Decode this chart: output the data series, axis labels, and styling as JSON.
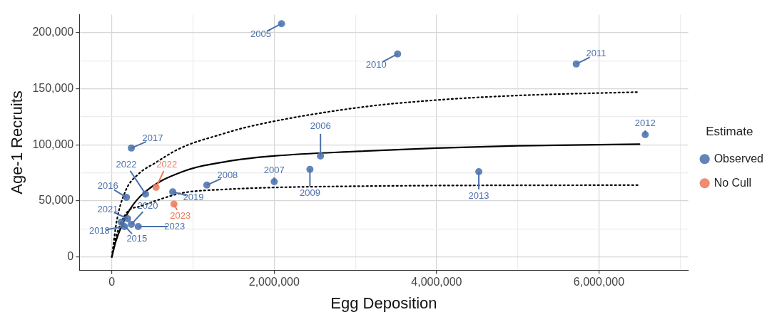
{
  "chart_data": {
    "type": "scatter",
    "xlabel": "Egg Deposition",
    "ylabel": "Age-1 Recruits",
    "legend_title": "Estimate",
    "legend": "right",
    "grid": true,
    "xlim": [
      -400000,
      7100000
    ],
    "ylim": [
      -12000,
      216000
    ],
    "xticks": [
      0,
      {
        "value": 1000000,
        "label": null
      },
      {
        "value": 2000000,
        "label": "2,000,000"
      },
      {
        "value": 3000000,
        "label": null
      },
      {
        "value": 4000000,
        "label": "4,000,000"
      },
      {
        "value": 5000000,
        "label": null
      },
      {
        "value": 6000000,
        "label": "6,000,000"
      },
      {
        "value": 7000000,
        "label": null
      }
    ],
    "yticks": [
      0,
      {
        "value": 25000,
        "label": null
      },
      {
        "value": 50000,
        "label": "50,000"
      },
      {
        "value": 75000,
        "label": null
      },
      {
        "value": 100000,
        "label": "100,000"
      },
      {
        "value": 125000,
        "label": null
      },
      {
        "value": 150000,
        "label": "150,000"
      },
      {
        "value": 175000,
        "label": null
      },
      {
        "value": 200000,
        "label": "200,000"
      }
    ],
    "series": [
      {
        "name": "Observed",
        "color": "#4a71ad",
        "marker": "circle",
        "x": [
          2090000,
          2570000,
          2000000,
          1170000,
          2440000,
          3520000,
          5720000,
          6570000,
          4520000,
          115000,
          180000,
          240000,
          155000,
          750000,
          240000,
          195000,
          415000,
          325000
        ],
        "values": [
          208000,
          90000,
          67000,
          64000,
          78000,
          181000,
          172000,
          109000,
          76000,
          31000,
          53000,
          97000,
          27000,
          58000,
          29000,
          34000,
          56000,
          27000
        ]
      },
      {
        "name": "No Cull",
        "color": "#ee7a5a",
        "marker": "circle",
        "x": [
          545000,
          765000
        ],
        "values": [
          62000,
          47000
        ]
      },
      {
        "type": "line",
        "color": "#000000",
        "marker": "none",
        "line_style": "solid",
        "x": [
          0,
          50000,
          100000,
          220000,
          410000,
          870000,
          1500000,
          2000000,
          3000000,
          4000000,
          5000000,
          6500000
        ],
        "values": [
          0,
          14000,
          24000,
          42000,
          58000,
          76000,
          86000,
          90000,
          94000,
          97000,
          99000,
          100500
        ]
      },
      {
        "type": "line",
        "color": "#000000",
        "marker": "none",
        "line_style": "dotted",
        "x": [
          0,
          60000,
          170000,
          330000,
          540000,
          790000,
          980000,
          1290000,
          1680000,
          3020000,
          4030000,
          5040000,
          6500000
        ],
        "values": [
          0,
          32000,
          59000,
          74000,
          84000,
          95000,
          101000,
          108000,
          116000,
          133000,
          140000,
          144000,
          147000
        ]
      },
      {
        "type": "line",
        "color": "#000000",
        "marker": "none",
        "line_style": "dotted",
        "x": [
          0,
          30000,
          190000,
          350000,
          540000,
          870000,
          1350000,
          3020000,
          6500000
        ],
        "values": [
          0,
          12000,
          40000,
          45000,
          50000,
          57000,
          60000,
          63000,
          64000
        ]
      }
    ],
    "annotations": [
      {
        "text": "2005",
        "x": 2090000,
        "y": 208000
      },
      {
        "text": "2006",
        "x": 2570000,
        "y": 90000
      },
      {
        "text": "2007",
        "x": 2000000,
        "y": 67000
      },
      {
        "text": "2008",
        "x": 1170000,
        "y": 64000
      },
      {
        "text": "2009",
        "x": 2440000,
        "y": 78000
      },
      {
        "text": "2010",
        "x": 3520000,
        "y": 181000
      },
      {
        "text": "2011",
        "x": 5720000,
        "y": 172000
      },
      {
        "text": "2012",
        "x": 6570000,
        "y": 109000
      },
      {
        "text": "2013",
        "x": 4520000,
        "y": 76000
      },
      {
        "text": "2015",
        "x": 115000,
        "y": 31000
      },
      {
        "text": "2016",
        "x": 180000,
        "y": 53000
      },
      {
        "text": "2017",
        "x": 240000,
        "y": 97000
      },
      {
        "text": "2018",
        "x": 155000,
        "y": 27000
      },
      {
        "text": "2019",
        "x": 750000,
        "y": 58000
      },
      {
        "text": "2020",
        "x": 240000,
        "y": 29000
      },
      {
        "text": "2021",
        "x": 195000,
        "y": 34000
      },
      {
        "text": "2022",
        "x": 415000,
        "y": 56000
      },
      {
        "text": "2023",
        "x": 325000,
        "y": 27000
      },
      {
        "text": "2022",
        "x": 545000,
        "y": 62000
      },
      {
        "text": "2023",
        "x": 765000,
        "y": 47000
      }
    ]
  }
}
